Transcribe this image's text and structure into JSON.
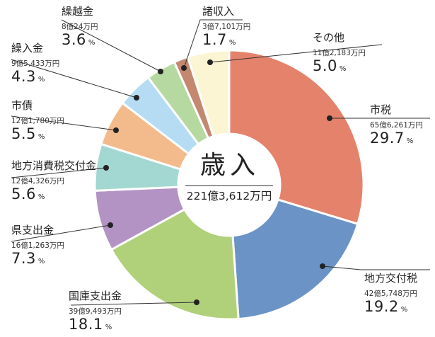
{
  "chart_data": {
    "type": "pie",
    "title": "歳入",
    "total": "221億3,612万円",
    "pct_unit": "%",
    "slices": [
      {
        "label": "市税",
        "amount": "65億6,261万円",
        "value": 29.7,
        "pct": "29.7",
        "color": "#e5826b"
      },
      {
        "label": "地方交付税",
        "amount": "42億5,748万円",
        "value": 19.2,
        "pct": "19.2",
        "color": "#6b93c6"
      },
      {
        "label": "国庫支出金",
        "amount": "39億9,493万円",
        "value": 18.1,
        "pct": "18.1",
        "color": "#b1d07a"
      },
      {
        "label": "県支出金",
        "amount": "16億1,263万円",
        "value": 7.3,
        "pct": "7.3",
        "color": "#b393c4"
      },
      {
        "label": "地方消費税交付金",
        "amount": "12億4,326万円",
        "value": 5.6,
        "pct": "5.6",
        "color": "#a3d7d2"
      },
      {
        "label": "市債",
        "amount": "12億1,780万円",
        "value": 5.5,
        "pct": "5.5",
        "color": "#f3bb8c"
      },
      {
        "label": "繰入金",
        "amount": "9億5,433万円",
        "value": 4.3,
        "pct": "4.3",
        "color": "#b5dcf2"
      },
      {
        "label": "繰越金",
        "amount": "8億24万円",
        "value": 3.6,
        "pct": "3.6",
        "color": "#b6d9a1"
      },
      {
        "label": "諸収入",
        "amount": "3億7,101万円",
        "value": 1.7,
        "pct": "1.7",
        "color": "#c48870"
      },
      {
        "label": "その他",
        "amount": "11億2,183万円",
        "value": 5.0,
        "pct": "5.0",
        "color": "#fcf5d3"
      }
    ]
  }
}
